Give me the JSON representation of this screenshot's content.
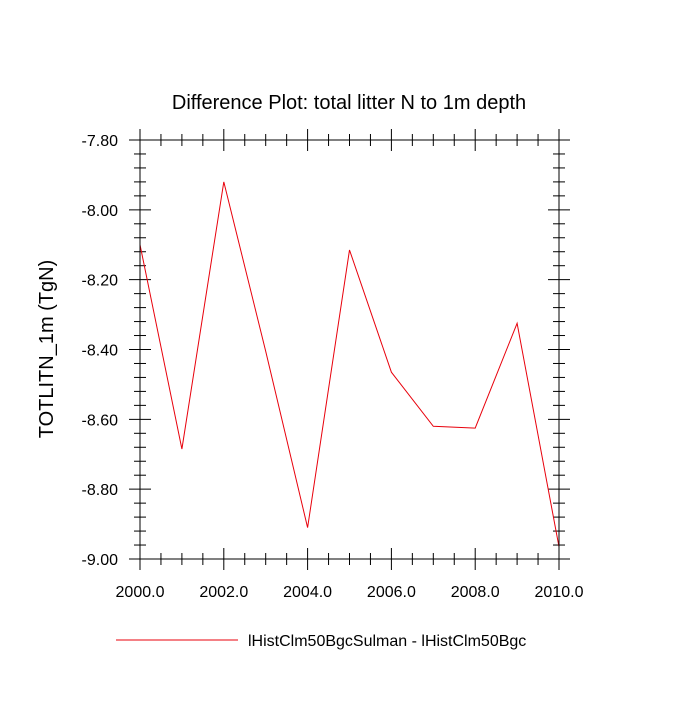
{
  "chart_data": {
    "type": "line",
    "title": "Difference Plot: total litter N to 1m depth",
    "xlabel": "",
    "ylabel": "TOTLITN_1m  (TgN)",
    "xlim": [
      2000,
      2010
    ],
    "ylim": [
      -9.0,
      -7.8
    ],
    "x_ticks": [
      2000,
      2002,
      2004,
      2006,
      2008,
      2010
    ],
    "x_tick_labels": [
      "2000.0",
      "2002.0",
      "2004.0",
      "2006.0",
      "2008.0",
      "2010.0"
    ],
    "y_ticks": [
      -7.8,
      -8.0,
      -8.2,
      -8.4,
      -8.6,
      -8.8,
      -9.0
    ],
    "y_tick_labels": [
      "-7.80",
      "-8.00",
      "-8.20",
      "-8.40",
      "-8.60",
      "-8.80",
      "-9.00"
    ],
    "grid": false,
    "legend_position": "bottom",
    "series": [
      {
        "name": "lHistClm50BgcSulman - lHistClm50Bgc",
        "color": "#e8000b",
        "x": [
          2000,
          2001,
          2002,
          2003,
          2004,
          2005,
          2006,
          2007,
          2008,
          2009,
          2010
        ],
        "y": [
          -8.1,
          -8.685,
          -7.92,
          -8.405,
          -8.91,
          -8.115,
          -8.465,
          -8.62,
          -8.625,
          -8.325,
          -8.965
        ]
      }
    ]
  }
}
